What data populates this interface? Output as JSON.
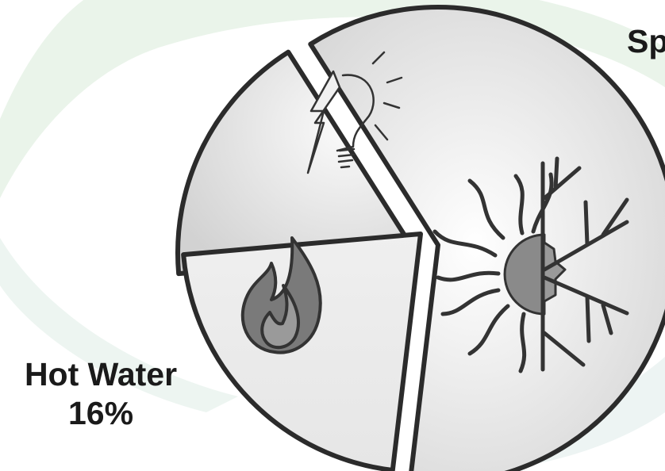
{
  "chart_data": {
    "type": "pie",
    "slices": [
      {
        "label": "Hot Water",
        "value": 16,
        "value_text": "16%",
        "icon": "flame-icon"
      },
      {
        "label": "Sp",
        "value": 56,
        "icon": "sun-snowflake-icon"
      },
      {
        "label": "",
        "value": 20,
        "icon": "lightbulb-icon"
      }
    ]
  },
  "labels": {
    "hot_water_name": "Hot Water",
    "hot_water_pct": "16%",
    "space_name": "Sp"
  }
}
